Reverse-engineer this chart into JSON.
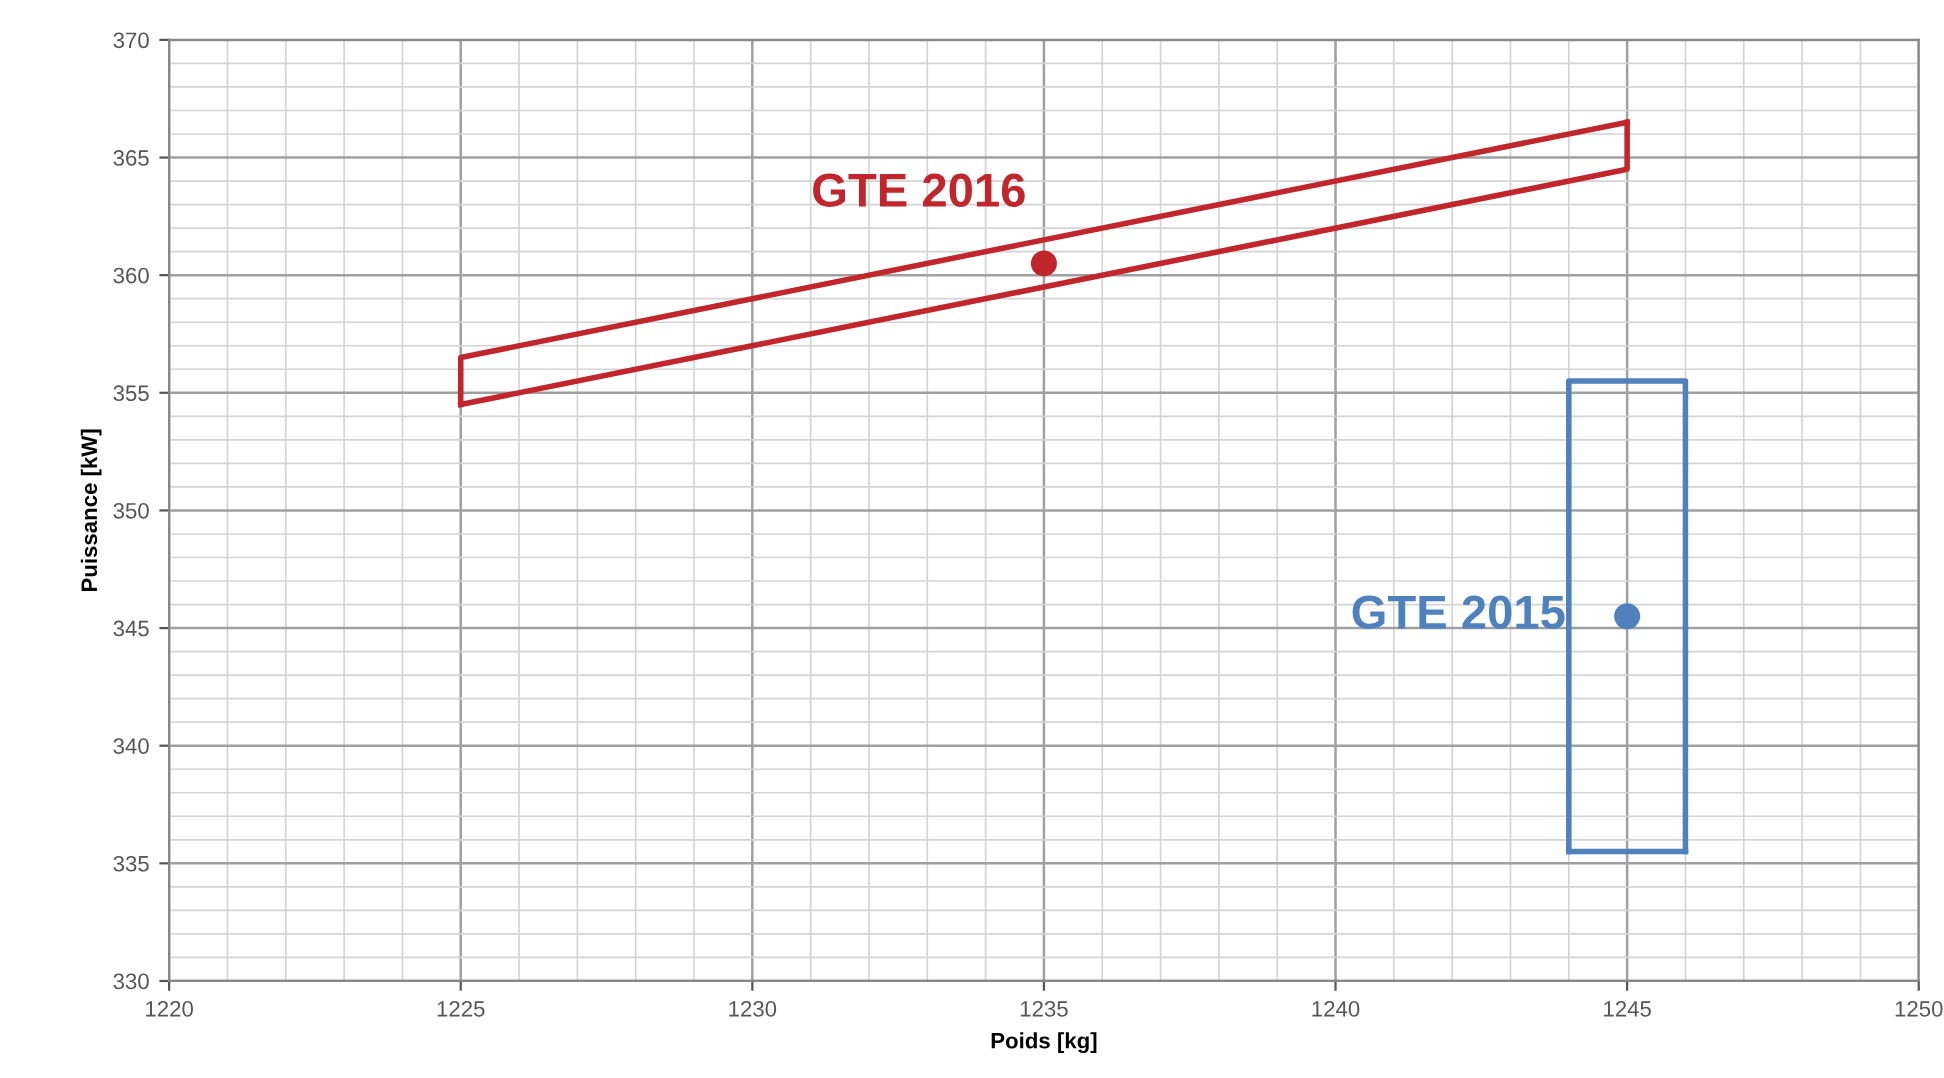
{
  "chart_data": {
    "type": "scatter",
    "xlabel": "Poids [kg]",
    "ylabel": "Puissance [kW]",
    "xlim": [
      1220,
      1250
    ],
    "xticks": [
      1220,
      1225,
      1230,
      1235,
      1240,
      1245,
      1250
    ],
    "ylim": [
      330,
      370
    ],
    "yticks": [
      330,
      335,
      340,
      345,
      350,
      355,
      360,
      365,
      370
    ],
    "grid": true,
    "marker": "circle",
    "series": [
      {
        "type": "line",
        "color": "#c0262c",
        "x": [
          1225,
          1225,
          1245
        ],
        "values": [
          354.5,
          356.5,
          366.5
        ],
        "marker": "none"
      },
      {
        "type": "line",
        "color": "#c0262c",
        "x": [
          1225,
          1245,
          1245
        ],
        "values": [
          354.5,
          364.5,
          366.5
        ],
        "marker": "none"
      },
      {
        "type": "line",
        "color": "#4f81bd",
        "x": [
          1244,
          1244,
          1246,
          1246
        ],
        "values": [
          335.5,
          355.5,
          355.5,
          335.5
        ],
        "marker": "none"
      },
      {
        "type": "line",
        "color": "#4f81bd",
        "x": [
          1244,
          1246
        ],
        "values": [
          335.5,
          335.5
        ],
        "marker": "none"
      },
      {
        "name": "GTE 2016",
        "color": "#c0262c",
        "x": [
          1235
        ],
        "values": [
          360.5
        ]
      },
      {
        "name": "GTE 2015",
        "color": "#4f81bd",
        "x": [
          1245
        ],
        "values": [
          345.5
        ]
      }
    ]
  }
}
